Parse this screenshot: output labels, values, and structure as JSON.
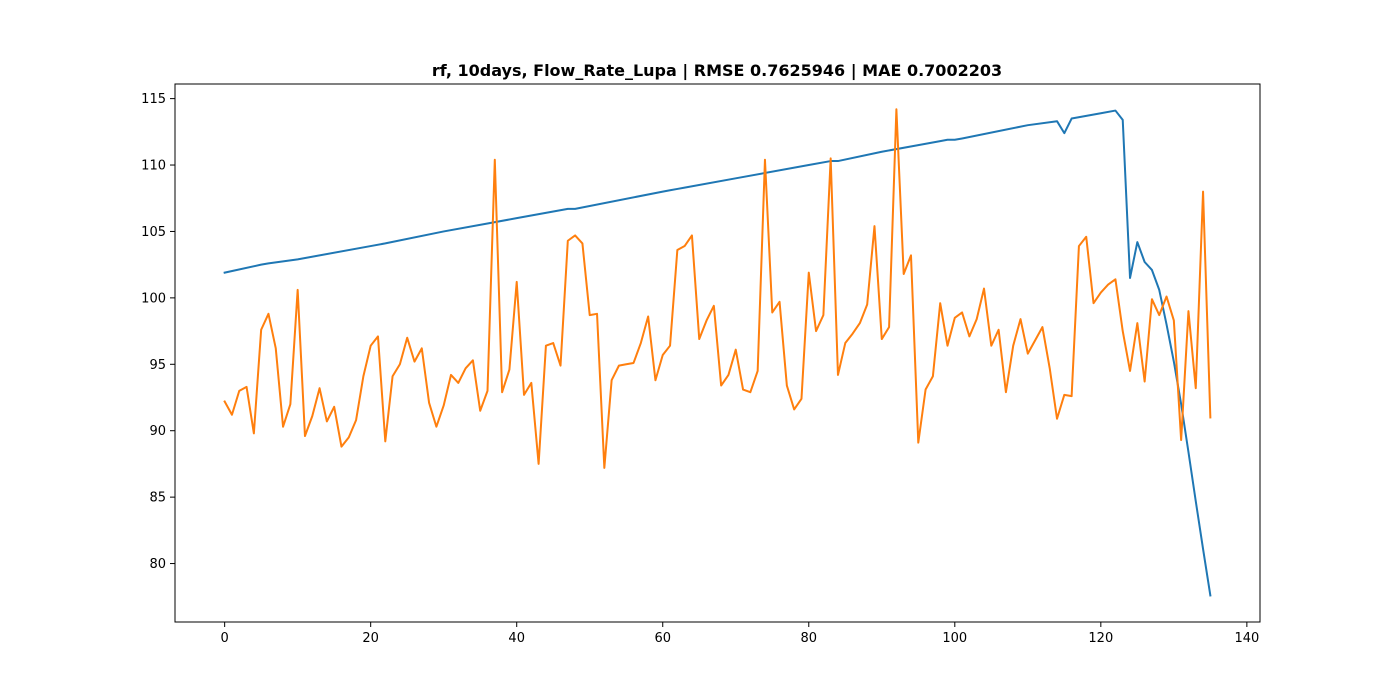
{
  "chart_data": {
    "type": "line",
    "title": "rf, 10days, Flow_Rate_Lupa | RMSE 0.7625946 | MAE 0.7002203",
    "xlabel": "",
    "ylabel": "",
    "xlim": [
      -6.8,
      141.8
    ],
    "ylim": [
      75.6,
      116.1
    ],
    "xticks": [
      0,
      20,
      40,
      60,
      80,
      100,
      120,
      140
    ],
    "yticks": [
      80,
      85,
      90,
      95,
      100,
      105,
      110,
      115
    ],
    "grid": false,
    "legend": "none",
    "series": [
      {
        "color": "#1f77b4",
        "x": [
          0,
          5,
          6,
          10,
          20,
          22,
          30,
          36,
          40,
          47,
          48,
          60,
          61,
          62,
          63,
          70,
          80,
          83,
          84,
          90,
          95,
          98,
          99,
          100,
          101,
          110,
          114,
          115,
          116,
          120,
          122,
          123,
          124,
          125,
          126,
          127,
          128,
          129,
          130,
          131,
          132,
          133,
          134,
          135
        ],
        "values": [
          101.9,
          102.5,
          102.6,
          102.9,
          103.9,
          104.1,
          105.0,
          105.6,
          106.0,
          106.7,
          106.7,
          108.0,
          108.1,
          108.2,
          108.3,
          109.0,
          110.0,
          110.3,
          110.3,
          111.0,
          111.5,
          111.8,
          111.9,
          111.9,
          112.0,
          113.0,
          113.3,
          112.4,
          113.5,
          113.9,
          114.1,
          113.4,
          101.5,
          104.2,
          102.7,
          102.1,
          100.6,
          98.0,
          95.2,
          92.0,
          88.4,
          84.7,
          81.1,
          77.6
        ]
      },
      {
        "color": "#ff7f0e",
        "x": [
          0,
          1,
          2,
          3,
          4,
          5,
          6,
          7,
          8,
          9,
          10,
          11,
          12,
          13,
          14,
          15,
          16,
          17,
          18,
          19,
          20,
          21,
          22,
          23,
          24,
          25,
          26,
          27,
          28,
          29,
          30,
          31,
          32,
          33,
          34,
          35,
          36,
          37,
          38,
          39,
          40,
          41,
          42,
          43,
          44,
          45,
          46,
          47,
          48,
          49,
          50,
          51,
          52,
          53,
          54,
          55,
          56,
          57,
          58,
          59,
          60,
          61,
          62,
          63,
          64,
          65,
          66,
          67,
          68,
          69,
          70,
          71,
          72,
          73,
          74,
          75,
          76,
          77,
          78,
          79,
          80,
          81,
          82,
          83,
          84,
          85,
          86,
          87,
          88,
          89,
          90,
          91,
          92,
          93,
          94,
          95,
          96,
          97,
          98,
          99,
          100,
          101,
          102,
          103,
          104,
          105,
          106,
          107,
          108,
          109,
          110,
          111,
          112,
          113,
          114,
          115,
          116,
          117,
          118,
          119,
          120,
          121,
          122,
          123,
          124,
          125,
          126,
          127,
          128,
          129,
          130,
          131,
          132,
          133,
          134,
          135
        ],
        "values": [
          92.2,
          91.2,
          93.0,
          93.3,
          89.8,
          97.6,
          98.8,
          96.2,
          90.3,
          92.0,
          100.6,
          89.6,
          91.1,
          93.2,
          90.7,
          91.8,
          88.8,
          89.5,
          90.8,
          94.1,
          96.4,
          97.1,
          89.2,
          94.1,
          95.0,
          97.0,
          95.2,
          96.2,
          92.1,
          90.3,
          91.9,
          94.2,
          93.6,
          94.7,
          95.3,
          91.5,
          93.0,
          110.4,
          92.9,
          94.6,
          101.2,
          92.7,
          93.6,
          87.5,
          96.4,
          96.6,
          94.9,
          104.3,
          104.7,
          104.1,
          98.7,
          98.8,
          87.2,
          93.8,
          94.9,
          95.0,
          95.1,
          96.6,
          98.6,
          93.8,
          95.7,
          96.4,
          103.6,
          103.9,
          104.7,
          96.9,
          98.3,
          99.4,
          93.4,
          94.2,
          96.1,
          93.1,
          92.9,
          94.5,
          110.4,
          98.9,
          99.7,
          93.4,
          91.6,
          92.4,
          101.9,
          97.5,
          98.7,
          110.5,
          94.2,
          96.6,
          97.3,
          98.1,
          99.5,
          105.4,
          96.9,
          97.8,
          114.2,
          101.8,
          103.2,
          89.1,
          93.1,
          94.1,
          99.6,
          96.4,
          98.5,
          98.9,
          97.1,
          98.4,
          100.7,
          96.4,
          97.6,
          92.9,
          96.4,
          98.4,
          95.8,
          96.8,
          97.8,
          94.7,
          90.9,
          92.7,
          92.6,
          103.9,
          104.6,
          99.6,
          100.4,
          101.0,
          101.4,
          97.5,
          94.5,
          98.1,
          93.7,
          99.9,
          98.7,
          100.1,
          98.3,
          89.3,
          99.0,
          93.2,
          108.0,
          91.0
        ]
      }
    ]
  }
}
